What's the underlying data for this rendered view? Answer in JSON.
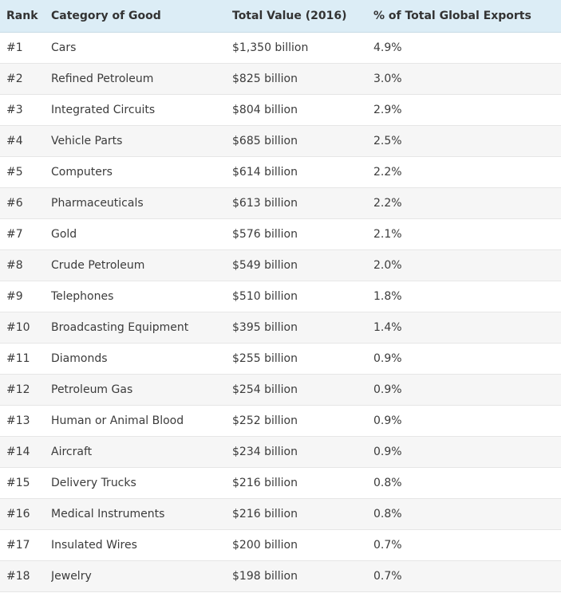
{
  "table": {
    "headers": {
      "rank": "Rank",
      "category": "Category of Good",
      "value": "Total Value (2016)",
      "percent": "% of Total Global Exports"
    },
    "rows": [
      {
        "rank": "#1",
        "category": "Cars",
        "value": "$1,350 billion",
        "percent": "4.9%"
      },
      {
        "rank": "#2",
        "category": "Refined Petroleum",
        "value": "$825 billion",
        "percent": "3.0%"
      },
      {
        "rank": "#3",
        "category": "Integrated Circuits",
        "value": "$804 billion",
        "percent": "2.9%"
      },
      {
        "rank": "#4",
        "category": "Vehicle Parts",
        "value": "$685 billion",
        "percent": "2.5%"
      },
      {
        "rank": "#5",
        "category": "Computers",
        "value": "$614 billion",
        "percent": "2.2%"
      },
      {
        "rank": "#6",
        "category": "Pharmaceuticals",
        "value": "$613 billion",
        "percent": "2.2%"
      },
      {
        "rank": "#7",
        "category": "Gold",
        "value": "$576 billion",
        "percent": "2.1%"
      },
      {
        "rank": "#8",
        "category": "Crude Petroleum",
        "value": "$549 billion",
        "percent": "2.0%"
      },
      {
        "rank": "#9",
        "category": "Telephones",
        "value": "$510 billion",
        "percent": "1.8%"
      },
      {
        "rank": "#10",
        "category": "Broadcasting Equipment",
        "value": "$395 billion",
        "percent": "1.4%"
      },
      {
        "rank": "#11",
        "category": "Diamonds",
        "value": "$255 billion",
        "percent": "0.9%"
      },
      {
        "rank": "#12",
        "category": "Petroleum Gas",
        "value": "$254 billion",
        "percent": "0.9%"
      },
      {
        "rank": "#13",
        "category": "Human or Animal Blood",
        "value": "$252 billion",
        "percent": "0.9%"
      },
      {
        "rank": "#14",
        "category": "Aircraft",
        "value": "$234 billion",
        "percent": "0.9%"
      },
      {
        "rank": "#15",
        "category": "Delivery Trucks",
        "value": "$216 billion",
        "percent": "0.8%"
      },
      {
        "rank": "#16",
        "category": "Medical Instruments",
        "value": "$216 billion",
        "percent": "0.8%"
      },
      {
        "rank": "#17",
        "category": "Insulated Wires",
        "value": "$200 billion",
        "percent": "0.7%"
      },
      {
        "rank": "#18",
        "category": "Jewelry",
        "value": "$198 billion",
        "percent": "0.7%"
      }
    ]
  },
  "colors": {
    "header_background": "#dcedf6",
    "row_alt_background": "#f6f6f6",
    "text": "#3b3b3b"
  }
}
